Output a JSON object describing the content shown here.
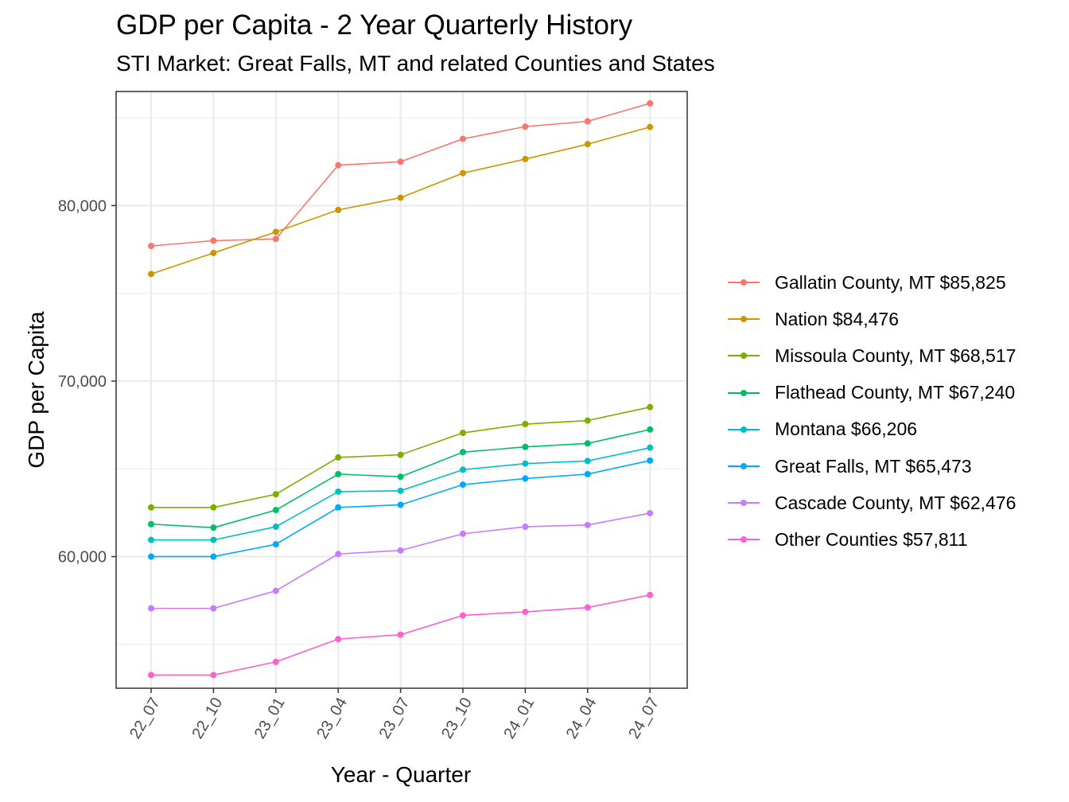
{
  "chart_data": {
    "type": "line",
    "title": "GDP per Capita - 2 Year Quarterly History",
    "subtitle": "STI Market: Great Falls, MT and related Counties and States",
    "xlabel": "Year - Quarter",
    "ylabel": "GDP per Capita",
    "categories": [
      "22_07",
      "22_10",
      "23_01",
      "23_04",
      "23_07",
      "23_10",
      "24_01",
      "24_04",
      "24_07"
    ],
    "ylim": [
      52500,
      86500
    ],
    "yticks": [
      60000,
      70000,
      80000
    ],
    "ytick_labels": [
      "60,000",
      "70,000",
      "80,000"
    ],
    "grid": true,
    "legend_position": "right",
    "series": [
      {
        "name": "Gallatin County, MT $85,825",
        "color": "#F8766D",
        "values": [
          77700,
          78000,
          78100,
          82300,
          82500,
          83800,
          84500,
          84800,
          85825
        ]
      },
      {
        "name": "Nation $84,476",
        "color": "#CD9600",
        "values": [
          76100,
          77300,
          78500,
          79750,
          80450,
          81850,
          82650,
          83500,
          84476
        ]
      },
      {
        "name": "Missoula County, MT $68,517",
        "color": "#7CAE00",
        "values": [
          62800,
          62800,
          63550,
          65650,
          65800,
          67050,
          67550,
          67750,
          68517
        ]
      },
      {
        "name": "Flathead County, MT $67,240",
        "color": "#00BE67",
        "values": [
          61850,
          61650,
          62650,
          64700,
          64550,
          65950,
          66250,
          66450,
          67240
        ]
      },
      {
        "name": "Montana $66,206",
        "color": "#00BFC4",
        "values": [
          60950,
          60950,
          61700,
          63700,
          63750,
          64950,
          65300,
          65450,
          66206
        ]
      },
      {
        "name": "Great Falls, MT $65,473",
        "color": "#00A9FF",
        "values": [
          60000,
          60000,
          60700,
          62800,
          62950,
          64100,
          64450,
          64700,
          65473
        ]
      },
      {
        "name": "Cascade County, MT $62,476",
        "color": "#C77CFF",
        "values": [
          57050,
          57050,
          58050,
          60150,
          60350,
          61300,
          61700,
          61800,
          62476
        ]
      },
      {
        "name": "Other Counties $57,811",
        "color": "#FF61CC",
        "values": [
          53250,
          53250,
          54000,
          55300,
          55550,
          56650,
          56850,
          57100,
          57811
        ]
      }
    ]
  }
}
